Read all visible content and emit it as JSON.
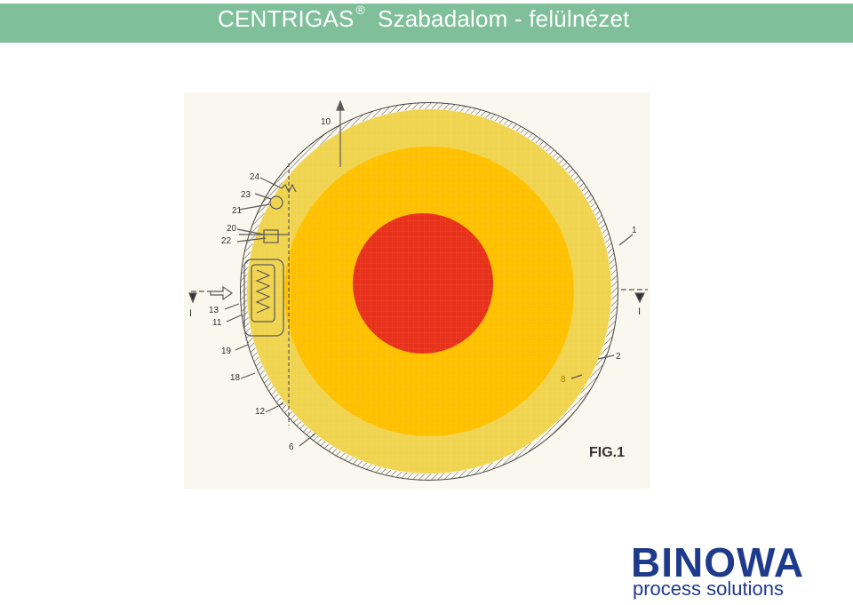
{
  "header": {
    "brand": "CENTRIGAS",
    "registered_mark": "®",
    "subtitle": "Szabadalom - felülnézet",
    "bar_color": "#7fbf99"
  },
  "figure": {
    "caption": "FIG.1",
    "section_marker_left": "I",
    "section_marker_right": "I",
    "labels": {
      "l10": "10",
      "l24": "24",
      "l23": "23",
      "l21": "21",
      "l20": "20",
      "l22": "22",
      "l13": "13",
      "l11": "11",
      "l19": "19",
      "l18": "18",
      "l12": "12",
      "l6": "6",
      "l1": "1",
      "l2": "2",
      "l8": "8"
    },
    "colors": {
      "outer_zone": "#f0d44f",
      "middle_zone": "#ffc000",
      "inner_zone": "#e8311a"
    }
  },
  "logo": {
    "name": "BINOWA",
    "tagline": "process solutions",
    "color": "#1e3a8c"
  }
}
